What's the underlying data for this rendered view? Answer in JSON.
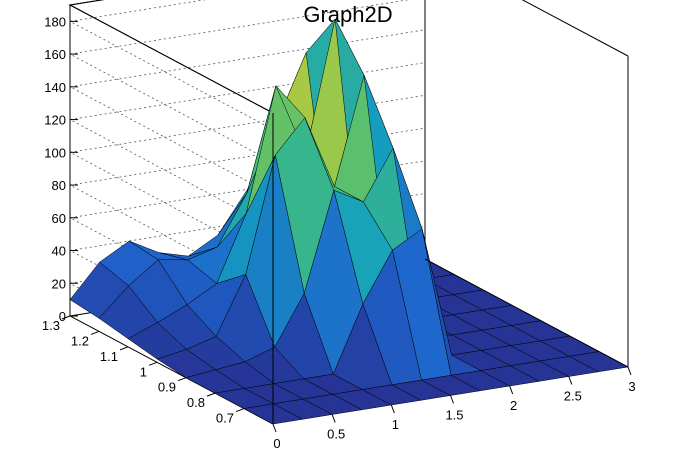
{
  "chart_data": {
    "type": "surface",
    "title": "Graph2D",
    "xlabel": "",
    "ylabel": "",
    "zlabel": "",
    "xlim": [
      0,
      3
    ],
    "ylim": [
      0.6,
      1.3
    ],
    "zlim": [
      0,
      190
    ],
    "grid": true,
    "colormap": "viridis-like (blue to yellow)",
    "x_ticks": [
      "0",
      "0.5",
      "1",
      "1.5",
      "2",
      "2.5",
      "3"
    ],
    "y_ticks": [
      "0.7",
      "0.8",
      "0.9",
      "1",
      "1.1",
      "1.2",
      "1.3"
    ],
    "z_ticks": [
      "0",
      "20",
      "40",
      "60",
      "80",
      "100",
      "120",
      "140",
      "160",
      "180"
    ],
    "x_tick_values": [
      0,
      0.5,
      1,
      1.5,
      2,
      2.5,
      3
    ],
    "y_tick_values": [
      0.7,
      0.8,
      0.9,
      1.0,
      1.1,
      1.2,
      1.3
    ],
    "z_tick_values": [
      0,
      20,
      40,
      60,
      80,
      100,
      120,
      140,
      160,
      180
    ],
    "surface_x": [
      0,
      0.25,
      0.5,
      0.75,
      1,
      1.25,
      1.5,
      1.75,
      2,
      2.25,
      2.5,
      2.75,
      3
    ],
    "surface_y": [
      0.6,
      0.7,
      0.8,
      0.9,
      1.0,
      1.1,
      1.2,
      1.3
    ],
    "surface_z": [
      [
        0,
        0,
        0,
        0,
        0,
        0,
        0,
        0,
        0,
        0,
        0,
        0,
        0
      ],
      [
        0,
        0,
        0,
        0,
        0,
        0,
        0,
        0,
        0,
        0,
        0,
        0,
        0
      ],
      [
        0,
        0,
        0,
        0,
        0,
        40,
        70,
        80,
        0,
        0,
        0,
        0,
        0
      ],
      [
        0,
        2,
        4,
        10,
        40,
        100,
        90,
        120,
        2,
        0,
        0,
        0,
        0
      ],
      [
        2,
        5,
        10,
        45,
        115,
        135,
        90,
        155,
        3,
        0,
        0,
        0,
        0
      ],
      [
        5,
        12,
        20,
        30,
        70,
        145,
        100,
        180,
        5,
        0,
        0,
        0,
        0
      ],
      [
        8,
        25,
        38,
        35,
        40,
        70,
        110,
        150,
        4,
        0,
        0,
        0,
        0
      ],
      [
        10,
        30,
        40,
        30,
        25,
        35,
        60,
        80,
        2,
        0,
        0,
        0,
        0
      ]
    ]
  }
}
